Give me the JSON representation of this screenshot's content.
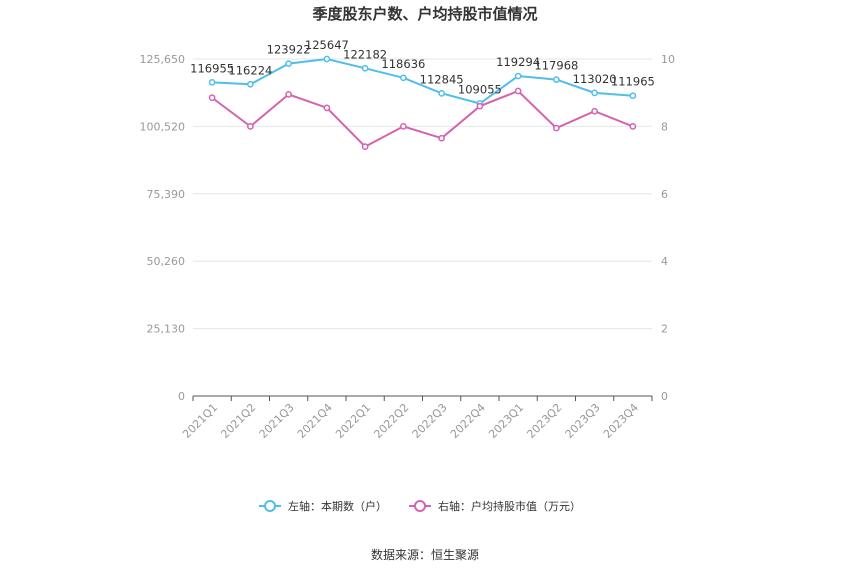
{
  "chart_data": {
    "type": "line",
    "title": "季度股东户数、户均持股市值情况",
    "categories": [
      "2021Q1",
      "2021Q2",
      "2021Q3",
      "2021Q4",
      "2022Q1",
      "2022Q2",
      "2022Q3",
      "2022Q4",
      "2023Q1",
      "2023Q2",
      "2023Q3",
      "2023Q4"
    ],
    "left_axis": {
      "ticks": [
        "0",
        "25,130",
        "50,260",
        "75,390",
        "100,520",
        "125,650"
      ],
      "ylim": [
        0,
        125650
      ]
    },
    "right_axis": {
      "ticks": [
        "0",
        "2",
        "4",
        "6",
        "8",
        "10"
      ],
      "ylim": [
        0,
        10
      ]
    },
    "series": [
      {
        "name": "左轴：本期数（户）",
        "axis": "left",
        "color": "#4fbdee",
        "values": [
          116955,
          116224,
          123922,
          125647,
          122182,
          118636,
          112845,
          109055,
          119294,
          117968,
          113020,
          111965
        ],
        "labels": [
          "116955",
          "116224",
          "123922",
          "125647",
          "122182",
          "118636",
          "112845",
          "109055",
          "119294",
          "117968",
          "113020",
          "111965"
        ]
      },
      {
        "name": "右轴：户均持股市值（万元）",
        "axis": "right",
        "color": "#d563b0",
        "values": [
          8.85,
          8.0,
          8.95,
          8.55,
          7.4,
          8.0,
          7.65,
          8.6,
          9.05,
          7.95,
          8.45,
          8.0
        ]
      }
    ],
    "grid": true,
    "legend_position": "bottom"
  },
  "footer": {
    "source": "数据来源：恒生聚源"
  }
}
